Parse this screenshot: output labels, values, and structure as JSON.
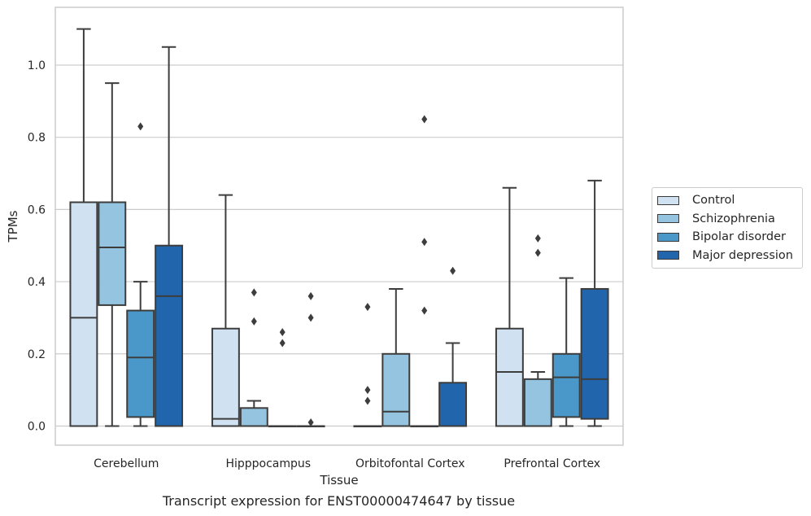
{
  "chart_data": {
    "type": "box",
    "xlabel": "Tissue",
    "ylabel": "TPMs",
    "caption": "Transcript expression for ENST00000474647 by tissue",
    "ylim": [
      -0.053,
      1.16
    ],
    "yticks": [
      0.0,
      0.2,
      0.4,
      0.6,
      0.8,
      1.0
    ],
    "ytick_labels": [
      "0.0",
      "0.2",
      "0.4",
      "0.6",
      "0.8",
      "1.0"
    ],
    "grid": "horizontal",
    "legend_position": "right",
    "categories": [
      "Cerebellum",
      "Hipppocampus",
      "Orbitofontal Cortex",
      "Prefrontal Cortex"
    ],
    "series": [
      {
        "name": "Control",
        "color": "#d0e1f2",
        "boxes": [
          {
            "whisker_low": 0.0,
            "q1": 0.0,
            "median": 0.3,
            "q3": 0.62,
            "whisker_high": 1.1,
            "outliers": []
          },
          {
            "whisker_low": 0.0,
            "q1": 0.0,
            "median": 0.02,
            "q3": 0.27,
            "whisker_high": 0.64,
            "outliers": []
          },
          {
            "whisker_low": 0.0,
            "q1": 0.0,
            "median": 0.0,
            "q3": 0.0,
            "whisker_high": 0.0,
            "outliers": [
              0.33,
              0.1,
              0.07
            ]
          },
          {
            "whisker_low": 0.0,
            "q1": 0.0,
            "median": 0.15,
            "q3": 0.27,
            "whisker_high": 0.66,
            "outliers": []
          }
        ]
      },
      {
        "name": "Schizophrenia",
        "color": "#94c4df",
        "boxes": [
          {
            "whisker_low": 0.0,
            "q1": 0.335,
            "median": 0.495,
            "q3": 0.62,
            "whisker_high": 0.95,
            "outliers": []
          },
          {
            "whisker_low": 0.0,
            "q1": 0.0,
            "median": 0.0,
            "q3": 0.05,
            "whisker_high": 0.07,
            "outliers": [
              0.37,
              0.29
            ]
          },
          {
            "whisker_low": 0.0,
            "q1": 0.0,
            "median": 0.04,
            "q3": 0.2,
            "whisker_high": 0.38,
            "outliers": []
          },
          {
            "whisker_low": 0.0,
            "q1": 0.0,
            "median": 0.0,
            "q3": 0.13,
            "whisker_high": 0.15,
            "outliers": [
              0.52,
              0.48
            ]
          }
        ]
      },
      {
        "name": "Bipolar disorder",
        "color": "#4a98c9",
        "boxes": [
          {
            "whisker_low": 0.0,
            "q1": 0.025,
            "median": 0.19,
            "q3": 0.32,
            "whisker_high": 0.4,
            "outliers": [
              0.83
            ]
          },
          {
            "whisker_low": 0.0,
            "q1": 0.0,
            "median": 0.0,
            "q3": 0.0,
            "whisker_high": 0.0,
            "outliers": [
              0.26,
              0.23
            ]
          },
          {
            "whisker_low": 0.0,
            "q1": 0.0,
            "median": 0.0,
            "q3": 0.0,
            "whisker_high": 0.0,
            "outliers": [
              0.85,
              0.51,
              0.32
            ]
          },
          {
            "whisker_low": 0.0,
            "q1": 0.025,
            "median": 0.135,
            "q3": 0.2,
            "whisker_high": 0.41,
            "outliers": []
          }
        ]
      },
      {
        "name": "Major depression",
        "color": "#2166ac",
        "boxes": [
          {
            "whisker_low": 0.0,
            "q1": 0.0,
            "median": 0.36,
            "q3": 0.5,
            "whisker_high": 1.05,
            "outliers": []
          },
          {
            "whisker_low": 0.0,
            "q1": 0.0,
            "median": 0.0,
            "q3": 0.0,
            "whisker_high": 0.0,
            "outliers": [
              0.36,
              0.3,
              0.01
            ]
          },
          {
            "whisker_low": 0.0,
            "q1": 0.0,
            "median": 0.0,
            "q3": 0.12,
            "whisker_high": 0.23,
            "outliers": [
              0.43
            ]
          },
          {
            "whisker_low": 0.0,
            "q1": 0.02,
            "median": 0.13,
            "q3": 0.38,
            "whisker_high": 0.68,
            "outliers": []
          }
        ]
      }
    ]
  }
}
